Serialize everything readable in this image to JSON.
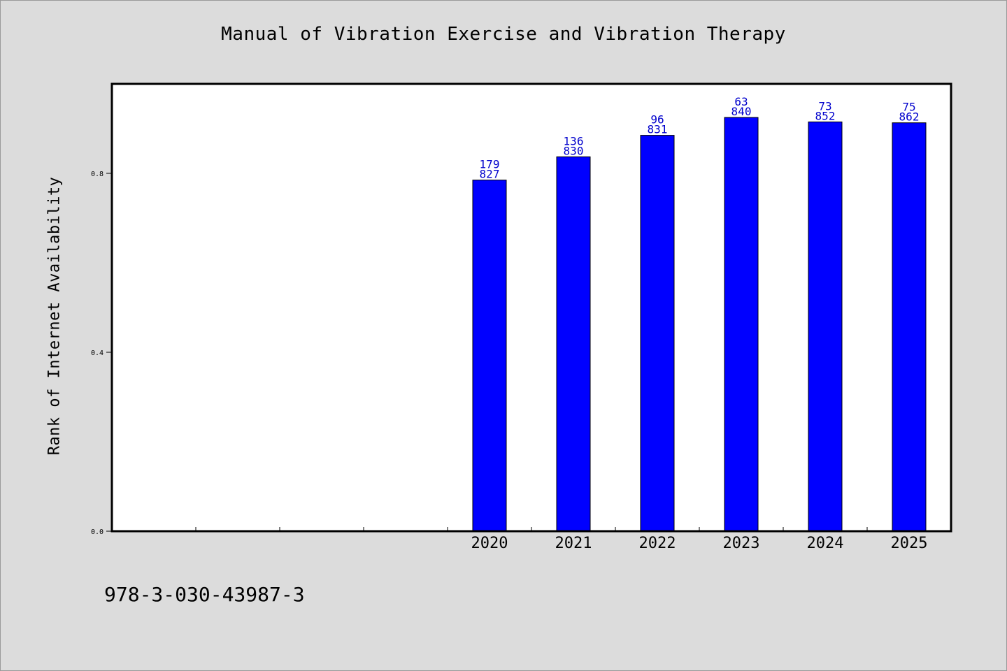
{
  "chart_data": {
    "type": "bar",
    "title": "Manual of Vibration Exercise and Vibration Therapy",
    "ylabel": "Rank of Internet Availability",
    "xlabel": "",
    "categories": [
      "",
      "",
      "",
      "",
      "2020",
      "2021",
      "2022",
      "2023",
      "2024",
      "2025"
    ],
    "values": [
      null,
      null,
      null,
      null,
      0.785,
      0.837,
      0.885,
      0.925,
      0.915,
      0.913
    ],
    "bar_labels": [
      null,
      null,
      null,
      null,
      [
        "179",
        "827"
      ],
      [
        "136",
        "830"
      ],
      [
        "96",
        "831"
      ],
      [
        "63",
        "840"
      ],
      [
        "73",
        "852"
      ],
      [
        "75",
        "862"
      ]
    ],
    "yticks": [
      "0.0",
      "0.4",
      "0.8"
    ],
    "ytick_values": [
      0.0,
      0.4,
      0.8
    ],
    "ylim": [
      0,
      1.0
    ],
    "bar_color": "#0000ff",
    "bar_label_color": "#0000cc",
    "grid": false,
    "legend": "none"
  },
  "footer": {
    "code": "978-3-030-43987-3"
  },
  "colors": {
    "background": "#dcdcdc",
    "plot_background": "#ffffff"
  }
}
